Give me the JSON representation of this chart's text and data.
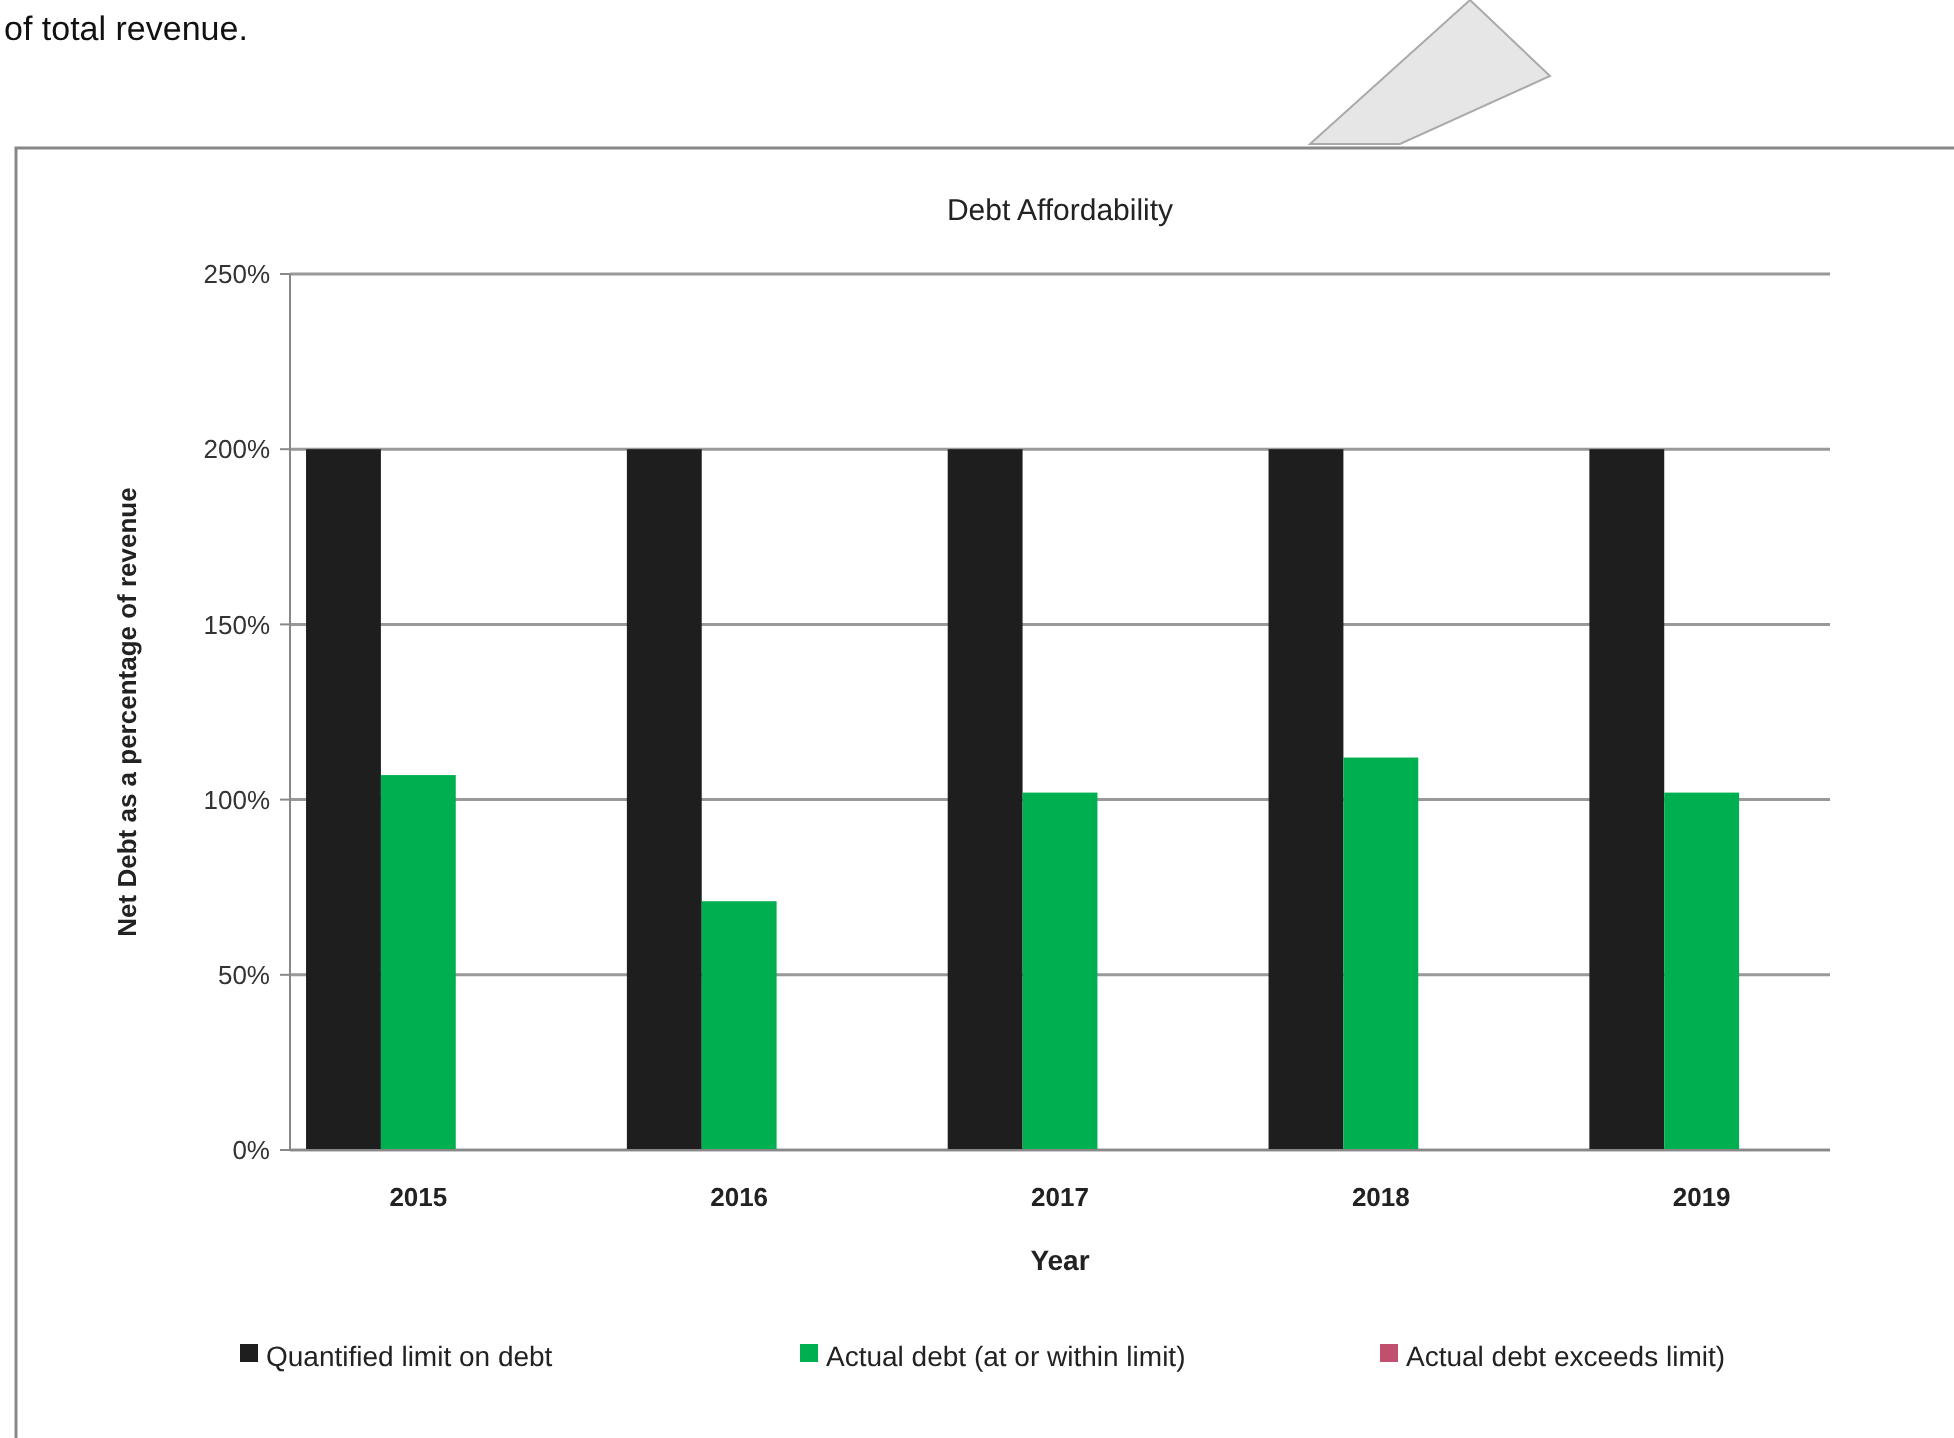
{
  "chart_data": {
    "type": "bar",
    "title": "Debt Affordability",
    "xlabel": "Year",
    "ylabel": "Net Debt as a percentage of revenue",
    "annotations": [
      "of total revenue."
    ],
    "categories": [
      "2015",
      "2016",
      "2017",
      "2018",
      "2019"
    ],
    "series": [
      {
        "name": "Quantified limit on debt",
        "color": "#1e1e1e",
        "values": [
          200,
          200,
          200,
          200,
          200
        ]
      },
      {
        "name": "Actual debt (at or within limit)",
        "color": "#00b050",
        "values": [
          107,
          71,
          102,
          112,
          102
        ]
      },
      {
        "name": "Actual debt exceeds limit)",
        "color": "#c0506e",
        "values": [
          null,
          null,
          null,
          null,
          null
        ]
      }
    ],
    "ylim": [
      0,
      250
    ],
    "yticks": [
      {
        "value": 0,
        "label": "0%"
      },
      {
        "value": 50,
        "label": "50%"
      },
      {
        "value": 100,
        "label": "100%"
      },
      {
        "value": 150,
        "label": "150%"
      },
      {
        "value": 200,
        "label": "200%"
      },
      {
        "value": 250,
        "label": "250%"
      }
    ],
    "grid": "y",
    "legend": "bottom"
  }
}
